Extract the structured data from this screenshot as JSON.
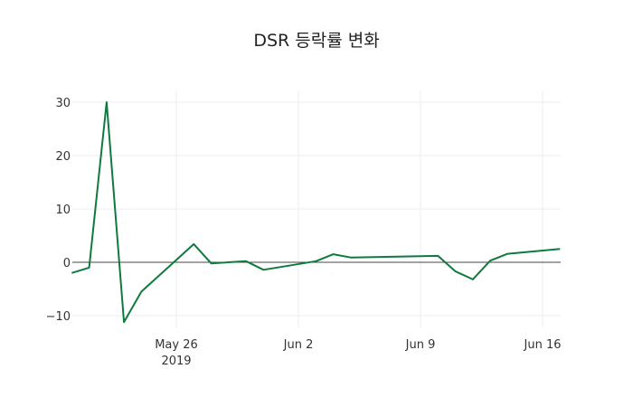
{
  "chart_data": {
    "type": "line",
    "title": "DSR 등락률 변화",
    "xlabel": "",
    "ylabel": "",
    "x": [
      "2019-05-20",
      "2019-05-21",
      "2019-05-22",
      "2019-05-23",
      "2019-05-24",
      "2019-05-27",
      "2019-05-28",
      "2019-05-30",
      "2019-05-31",
      "2019-06-03",
      "2019-06-04",
      "2019-06-05",
      "2019-06-10",
      "2019-06-11",
      "2019-06-12",
      "2019-06-13",
      "2019-06-14",
      "2019-06-17"
    ],
    "series": [
      {
        "name": "DSR",
        "color": "#0f7a3e",
        "values": [
          -2.0,
          -1.0,
          30.0,
          -11.2,
          -5.5,
          3.4,
          -0.2,
          0.2,
          -1.4,
          0.2,
          1.5,
          0.9,
          1.2,
          -1.7,
          -3.2,
          0.3,
          1.6,
          2.5
        ]
      }
    ],
    "x_tick_labels": [
      "May 26\n2019",
      "Jun 2",
      "Jun 9",
      "Jun 16"
    ],
    "y_tick_labels": [
      "−10",
      "0",
      "10",
      "20",
      "30"
    ],
    "ylim": [
      -12.5,
      32
    ],
    "grid": true,
    "zeroline": true
  }
}
